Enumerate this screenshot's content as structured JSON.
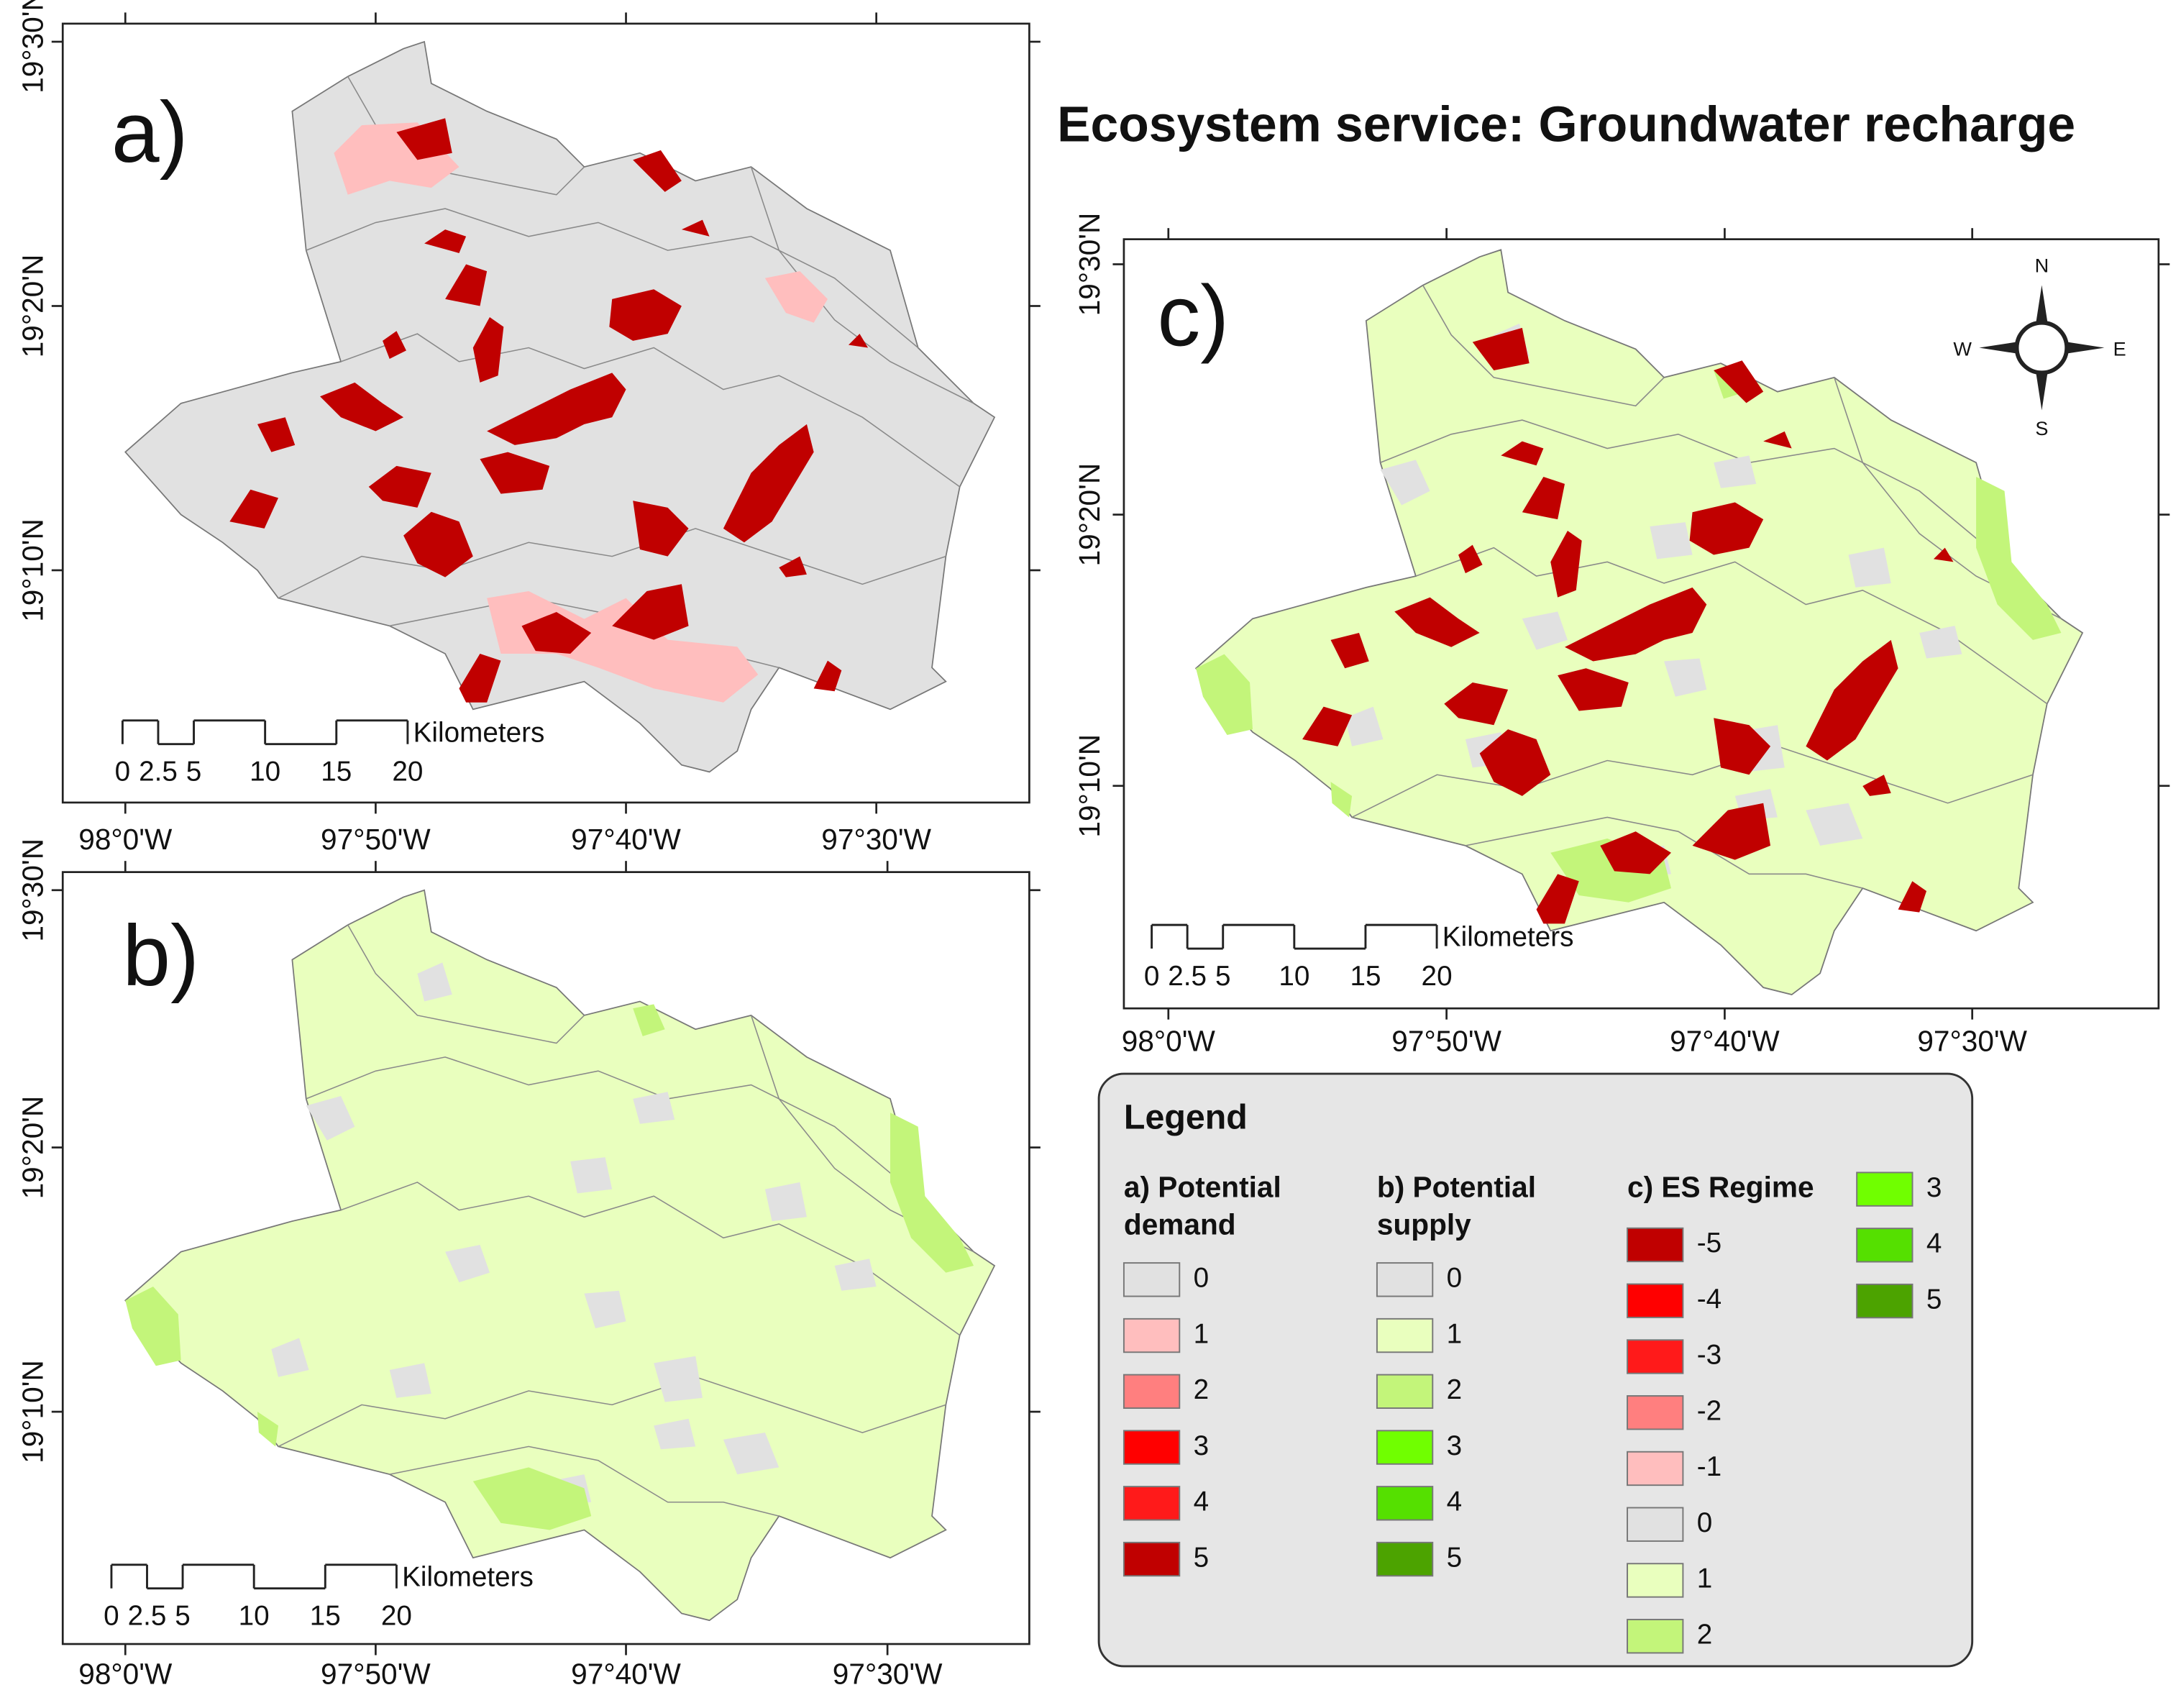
{
  "title": "Ecosystem service: Groundwater recharge",
  "panels": [
    {
      "label": "a)",
      "lon_ticks": [
        "98°0'W",
        "97°50'W",
        "97°40'W",
        "97°30'W"
      ],
      "lat_ticks": [
        "19°30'N",
        "19°20'N",
        "19°10'N"
      ],
      "scale_bar": {
        "ticks": [
          0,
          2.5,
          5,
          10,
          15,
          20
        ],
        "unit": "Kilometers"
      }
    },
    {
      "label": "b)",
      "lon_ticks": [
        "98°0'W",
        "97°50'W",
        "97°40'W",
        "97°30'W"
      ],
      "lat_ticks": [
        "19°30'N",
        "19°20'N",
        "19°10'N"
      ],
      "scale_bar": {
        "ticks": [
          0,
          2.5,
          5,
          10,
          15,
          20
        ],
        "unit": "Kilometers"
      }
    },
    {
      "label": "c)",
      "lon_ticks": [
        "98°0'W",
        "97°50'W",
        "97°40'W",
        "97°30'W"
      ],
      "lat_ticks": [
        "19°30'N",
        "19°20'N",
        "19°10'N"
      ],
      "scale_bar": {
        "ticks": [
          0,
          2.5,
          5,
          10,
          15,
          20
        ],
        "unit": "Kilometers"
      }
    }
  ],
  "compass": {
    "n": "N",
    "e": "E",
    "s": "S",
    "w": "W"
  },
  "legend": {
    "title": "Legend",
    "groups": [
      {
        "title_lines": [
          "a) Potential",
          "demand"
        ],
        "items": [
          {
            "label": "0",
            "color": "#e1e1e1"
          },
          {
            "label": "1",
            "color": "#ffbebe"
          },
          {
            "label": "2",
            "color": "#ff7f7f"
          },
          {
            "label": "3",
            "color": "#ff0000"
          },
          {
            "label": "4",
            "color": "#ff1a1a"
          },
          {
            "label": "5",
            "color": "#c00000"
          }
        ]
      },
      {
        "title_lines": [
          "b) Potential",
          "supply"
        ],
        "items": [
          {
            "label": "0",
            "color": "#e1e1e1"
          },
          {
            "label": "1",
            "color": "#e9ffbe"
          },
          {
            "label": "2",
            "color": "#c3f57a"
          },
          {
            "label": "3",
            "color": "#70ff00"
          },
          {
            "label": "4",
            "color": "#55e000"
          },
          {
            "label": "5",
            "color": "#4ca300"
          }
        ]
      },
      {
        "title_lines": [
          "c) ES Regime"
        ],
        "items": [
          {
            "label": "-5",
            "color": "#c00000"
          },
          {
            "label": "-4",
            "color": "#ff0000"
          },
          {
            "label": "-3",
            "color": "#ff1a1a"
          },
          {
            "label": "-2",
            "color": "#ff7f7f"
          },
          {
            "label": "-1",
            "color": "#ffbebe"
          },
          {
            "label": "0",
            "color": "#e1e1e1"
          },
          {
            "label": "1",
            "color": "#e9ffbe"
          },
          {
            "label": "2",
            "color": "#c3f57a"
          },
          {
            "label": "3",
            "color": "#70ff00"
          },
          {
            "label": "4",
            "color": "#55e000"
          },
          {
            "label": "5",
            "color": "#4ca300"
          }
        ]
      }
    ]
  }
}
